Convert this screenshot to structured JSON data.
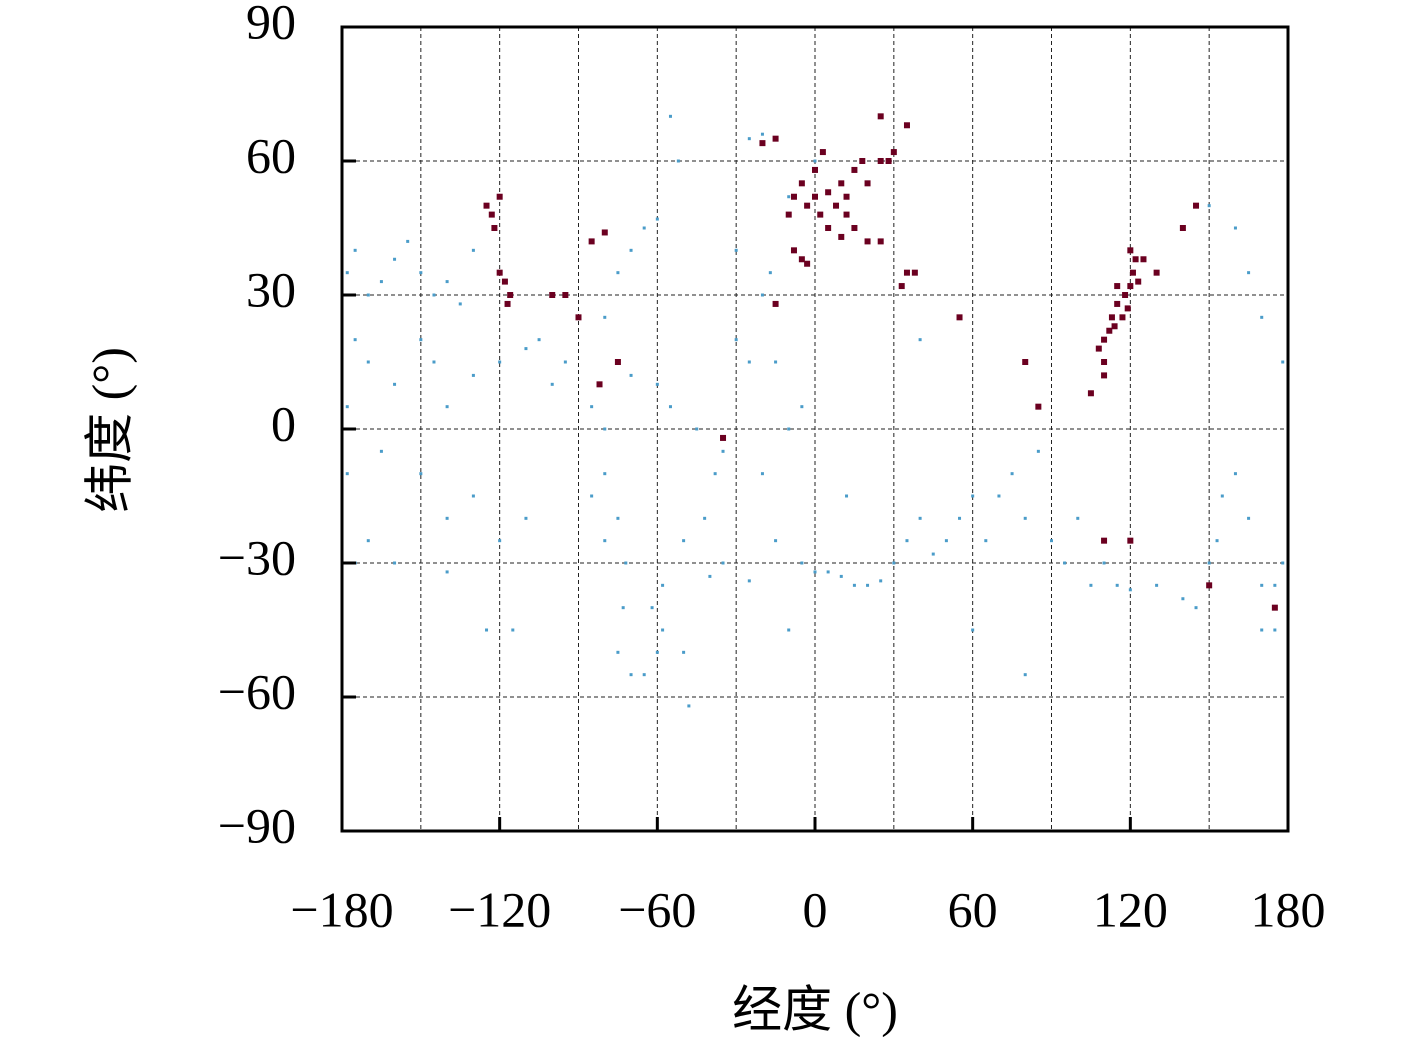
{
  "chart_data": {
    "type": "scatter",
    "xlabel": "经度 (°)",
    "ylabel": "纬度 (°)",
    "xlim": [
      -180,
      180
    ],
    "ylim": [
      -90,
      90
    ],
    "xticks": [
      {
        "value": -180,
        "label": "−180"
      },
      {
        "value": -120,
        "label": "−120"
      },
      {
        "value": -60,
        "label": "−60"
      },
      0,
      60,
      120,
      180
    ],
    "xminorticks": [
      -150,
      -90,
      -30,
      30,
      90,
      150
    ],
    "yticks": [
      {
        "value": -90,
        "label": "−90"
      },
      {
        "value": -60,
        "label": "−60"
      },
      {
        "value": -30,
        "label": "−30"
      },
      0,
      30,
      60,
      90
    ],
    "grid": true,
    "series": [
      {
        "color": "#4a9cc9",
        "marker_size": 3,
        "x": [
          -178,
          -175,
          -170,
          -165,
          -160,
          -155,
          -150,
          -145,
          -140,
          -135,
          -130,
          -175,
          -170,
          -160,
          -150,
          -145,
          -140,
          -130,
          -120,
          -110,
          -100,
          -178,
          -165,
          -150,
          -140,
          -130,
          -120,
          -110,
          -170,
          -160,
          -175,
          -140,
          -125,
          -115,
          -105,
          -95,
          -85,
          -80,
          -80,
          -75,
          -72,
          -73,
          -75,
          -70,
          -65,
          -60,
          -62,
          -58,
          -50,
          -42,
          -38,
          -35,
          -45,
          -55,
          -60,
          -70,
          -80,
          -75,
          -70,
          -65,
          -60,
          -55,
          -52,
          -58,
          -80,
          -85,
          -48,
          -30,
          -25,
          -20,
          -15,
          -17,
          -10,
          -20,
          -15,
          -5,
          0,
          5,
          10,
          15,
          20,
          25,
          30,
          35,
          40,
          45,
          50,
          55,
          60,
          65,
          70,
          75,
          80,
          85,
          90,
          95,
          100,
          105,
          110,
          115,
          120,
          130,
          140,
          145,
          150,
          153,
          155,
          160,
          165,
          170,
          175,
          178,
          170,
          175,
          -25,
          -40,
          -35,
          -10,
          0,
          -10,
          -20,
          -30,
          40,
          12,
          -5,
          -25,
          165,
          170,
          178,
          160,
          150,
          -178,
          80,
          -50,
          60
        ],
        "values": [
          35,
          40,
          30,
          33,
          38,
          42,
          35,
          30,
          33,
          28,
          40,
          20,
          15,
          10,
          20,
          15,
          5,
          12,
          15,
          18,
          10,
          5,
          -5,
          -10,
          -20,
          -15,
          -25,
          -20,
          -25,
          -30,
          -30,
          -32,
          -45,
          -45,
          20,
          15,
          5,
          0,
          -10,
          -20,
          -30,
          -40,
          -50,
          -55,
          -55,
          -50,
          -40,
          -35,
          -25,
          -20,
          -10,
          -5,
          0,
          5,
          10,
          12,
          25,
          35,
          40,
          45,
          47,
          70,
          60,
          -45,
          -25,
          -15,
          -62,
          20,
          15,
          30,
          15,
          35,
          0,
          -10,
          -25,
          -30,
          -32,
          -32,
          -33,
          -35,
          -35,
          -34,
          -30,
          -25,
          -20,
          -28,
          -25,
          -20,
          -15,
          -25,
          -15,
          -10,
          -20,
          -5,
          -25,
          -30,
          -20,
          -35,
          -30,
          -35,
          -36,
          -35,
          -38,
          -40,
          -30,
          -25,
          -15,
          -10,
          -20,
          -35,
          -35,
          -30,
          -45,
          -45,
          -34,
          -33,
          -30,
          -45,
          60,
          52,
          66,
          40,
          20,
          -15,
          5,
          65,
          35,
          25,
          15,
          45,
          50,
          -10,
          -55,
          -50,
          -45
        ]
      },
      {
        "color": "#6b0020",
        "marker_size": 6,
        "x": [
          -8,
          -5,
          -3,
          0,
          2,
          5,
          8,
          10,
          12,
          15,
          18,
          20,
          25,
          28,
          30,
          35,
          25,
          12,
          15,
          20,
          -5,
          -8,
          -3,
          10,
          5,
          35,
          33,
          38,
          -15,
          -15,
          -20,
          25,
          0,
          3,
          -10,
          110,
          112,
          113,
          115,
          118,
          120,
          121,
          122,
          120,
          125,
          115,
          108,
          110,
          114,
          117,
          119,
          123,
          110,
          105,
          145,
          140,
          130,
          -125,
          -123,
          -122,
          -120,
          -118,
          -116,
          -117,
          -120,
          -100,
          -95,
          -85,
          -80,
          -90,
          -75,
          -82,
          55,
          80,
          85,
          -35,
          150,
          175,
          120,
          110
        ],
        "values": [
          52,
          55,
          50,
          52,
          48,
          53,
          50,
          55,
          52,
          58,
          60,
          55,
          60,
          60,
          62,
          68,
          70,
          48,
          45,
          42,
          38,
          40,
          37,
          43,
          45,
          35,
          32,
          35,
          28,
          65,
          64,
          42,
          58,
          62,
          48,
          20,
          22,
          25,
          28,
          30,
          32,
          35,
          38,
          40,
          38,
          32,
          18,
          15,
          23,
          25,
          27,
          33,
          12,
          8,
          50,
          45,
          35,
          50,
          48,
          45,
          35,
          33,
          30,
          28,
          52,
          30,
          30,
          42,
          44,
          25,
          15,
          10,
          25,
          15,
          5,
          -2,
          -35,
          -40,
          -25,
          -25
        ]
      }
    ]
  }
}
